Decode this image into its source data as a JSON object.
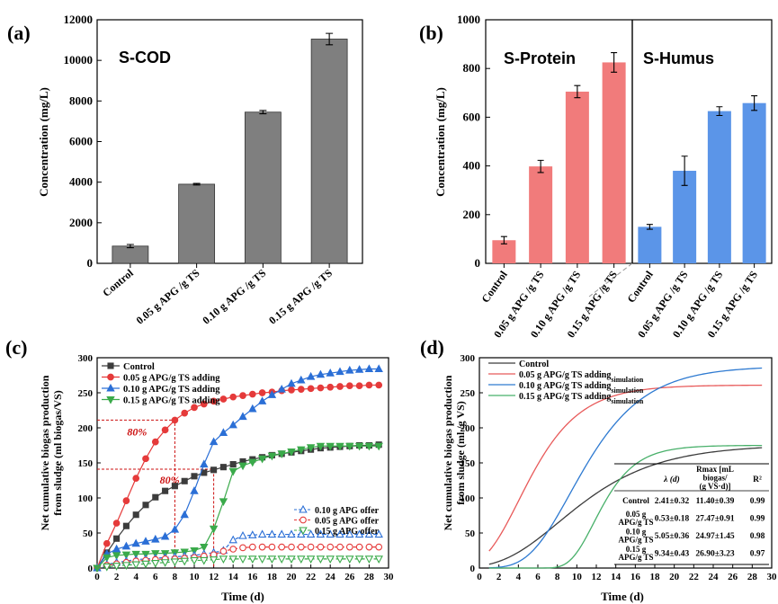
{
  "colors": {
    "grey": "#7f7f7f",
    "red": "#f17b7b",
    "blue": "#5b95e8",
    "black": "#3c3c3c",
    "c_red": "#e53a3a",
    "c_blue": "#2b6fd6",
    "c_green": "#3aaa4a",
    "d_red": "#e85a5a",
    "d_blue": "#2e7ad1",
    "d_green": "#48b06a",
    "annot": "#cc1111"
  },
  "chart_data": [
    {
      "type": "bar",
      "panel": "(a)",
      "label": "S-COD",
      "ylabel": "Concentration (mg/L)",
      "ylim": [
        0,
        12000
      ],
      "yticks": [
        "0",
        "2000",
        "4000",
        "6000",
        "8000",
        "10000",
        "12000"
      ],
      "categories": [
        "Control",
        "0.05 g APG /g TS",
        "0.10 g APG /g TS",
        "0.15 g APG /g TS"
      ],
      "values": [
        850,
        3900,
        7450,
        11050
      ],
      "errors": [
        80,
        40,
        80,
        280
      ]
    },
    {
      "type": "bar",
      "panel": "(b)",
      "ylabel": "Concentration (mg/L)",
      "ylim": [
        0,
        1000
      ],
      "yticks": [
        "0",
        "200",
        "400",
        "600",
        "800",
        "1000"
      ],
      "groups": [
        {
          "label": "S-Protein",
          "categories": [
            "Control",
            "0.05 g APG /g TS",
            "0.10 g APG /g TS",
            "0.15 g APG /g TS"
          ],
          "values": [
            95,
            398,
            705,
            825
          ],
          "errors": [
            15,
            25,
            25,
            40
          ]
        },
        {
          "label": "S-Humus",
          "categories": [
            "Control",
            "0.05 g APG /g TS",
            "0.10 g APG /g TS",
            "0.15 g APG /g TS"
          ],
          "values": [
            150,
            380,
            625,
            658
          ],
          "errors": [
            10,
            60,
            18,
            30
          ]
        }
      ]
    },
    {
      "type": "line",
      "panel": "(c)",
      "xlabel": "Time (d)",
      "ylabel": "Net cumulative biogas production from sludge (ml biogas/VS)",
      "ylabel_lines": [
        "Net cumulative biogas production",
        "from sludge (ml biogas/VS)"
      ],
      "xlim": [
        0,
        30
      ],
      "ylim": [
        0,
        300
      ],
      "xticks": [
        "0",
        "2",
        "4",
        "6",
        "8",
        "10",
        "12",
        "14",
        "16",
        "18",
        "20",
        "22",
        "24",
        "26",
        "28",
        "30"
      ],
      "yticks": [
        "0",
        "50",
        "100",
        "150",
        "200",
        "250",
        "300"
      ],
      "series": [
        {
          "name": "Control",
          "x": [
            0,
            1,
            2,
            3,
            4,
            5,
            6,
            7,
            8,
            9,
            10,
            11,
            12,
            13,
            14,
            15,
            16,
            17,
            18,
            19,
            20,
            21,
            22,
            23,
            24,
            25,
            26,
            27,
            28,
            29
          ],
          "y": [
            0,
            22,
            42,
            60,
            76,
            90,
            101,
            110,
            117,
            124,
            131,
            136,
            140,
            144,
            148,
            152,
            155,
            158,
            161,
            163,
            165,
            167,
            169,
            171,
            172,
            173,
            174,
            175,
            175,
            176
          ]
        },
        {
          "name": "0.05 g APG/g TS adding",
          "x": [
            0,
            1,
            2,
            3,
            4,
            5,
            6,
            7,
            8,
            9,
            10,
            11,
            12,
            13,
            14,
            15,
            16,
            17,
            18,
            19,
            20,
            21,
            22,
            23,
            24,
            25,
            26,
            27,
            28,
            29
          ],
          "y": [
            0,
            35,
            64,
            96,
            128,
            156,
            180,
            197,
            211,
            221,
            229,
            234,
            238,
            241,
            244,
            246,
            248,
            250,
            251,
            253,
            254,
            255,
            256,
            257,
            258,
            259,
            260,
            260,
            261,
            261
          ]
        },
        {
          "name": "0.10 g APG/g TS adding",
          "x": [
            0,
            1,
            2,
            3,
            4,
            5,
            6,
            7,
            8,
            9,
            10,
            11,
            12,
            13,
            14,
            15,
            16,
            17,
            18,
            19,
            20,
            21,
            22,
            23,
            24,
            25,
            26,
            27,
            28,
            29
          ],
          "y": [
            0,
            20,
            27,
            31,
            35,
            38,
            41,
            45,
            55,
            76,
            110,
            148,
            180,
            193,
            204,
            216,
            227,
            238,
            247,
            255,
            263,
            268,
            273,
            276,
            278,
            280,
            282,
            283,
            284,
            284
          ]
        },
        {
          "name": "0.15 g APG/g TS adding",
          "x": [
            0,
            1,
            2,
            3,
            4,
            5,
            6,
            7,
            8,
            9,
            10,
            11,
            12,
            13,
            14,
            15,
            16,
            17,
            18,
            19,
            20,
            21,
            22,
            23,
            24,
            25,
            26,
            27,
            28,
            29
          ],
          "y": [
            0,
            15,
            18,
            19,
            20,
            20,
            21,
            21,
            22,
            23,
            25,
            30,
            56,
            95,
            138,
            146,
            151,
            156,
            160,
            163,
            166,
            169,
            172,
            174,
            174,
            174,
            174,
            174,
            174,
            174
          ]
        },
        {
          "name": "0.10 g APG offer",
          "x": [
            0,
            1,
            2,
            3,
            4,
            5,
            6,
            7,
            8,
            9,
            10,
            11,
            12,
            13,
            14,
            15,
            16,
            17,
            18,
            19,
            20,
            21,
            22,
            23,
            24,
            25,
            26,
            27,
            28,
            29
          ],
          "y": [
            0,
            5,
            8,
            10,
            12,
            13,
            14,
            15,
            16,
            17,
            18,
            20,
            22,
            25,
            40,
            46,
            47,
            48,
            48,
            48,
            48,
            48,
            48,
            48,
            48,
            48,
            48,
            48,
            48,
            48
          ]
        },
        {
          "name": "0.05 g APG offer",
          "x": [
            0,
            1,
            2,
            3,
            4,
            5,
            6,
            7,
            8,
            9,
            10,
            11,
            12,
            13,
            14,
            15,
            16,
            17,
            18,
            19,
            20,
            21,
            22,
            23,
            24,
            25,
            26,
            27,
            28,
            29
          ],
          "y": [
            0,
            4,
            6,
            8,
            10,
            11,
            12,
            13,
            13,
            14,
            15,
            17,
            19,
            24,
            27,
            29,
            30,
            30,
            30,
            30,
            30,
            30,
            30,
            30,
            30,
            30,
            30,
            30,
            30,
            30
          ]
        },
        {
          "name": "0.15 g APG offer",
          "x": [
            0,
            1,
            2,
            3,
            4,
            5,
            6,
            7,
            8,
            9,
            10,
            11,
            12,
            13,
            14,
            15,
            16,
            17,
            18,
            19,
            20,
            21,
            22,
            23,
            24,
            25,
            26,
            27,
            28,
            29
          ],
          "y": [
            0,
            2,
            3,
            4,
            5,
            6,
            7,
            8,
            9,
            10,
            11,
            11,
            12,
            13,
            13,
            13,
            13,
            13,
            13,
            13,
            13,
            13,
            13,
            13,
            13,
            13,
            13,
            13,
            13,
            13
          ]
        }
      ],
      "annotations": [
        {
          "text": "80%",
          "x": 8,
          "y": 211
        },
        {
          "text": "80%",
          "x": 12,
          "y": 141
        }
      ]
    },
    {
      "type": "line",
      "panel": "(d)",
      "xlabel": "Time (d)",
      "ylabel": "Net cumulative biogas production from sludge (ml /g VS)",
      "ylabel_lines": [
        "Net cumulative biogas production",
        "from sludge (ml /g VS)"
      ],
      "xlim": [
        0,
        30
      ],
      "ylim": [
        0,
        300
      ],
      "xticks": [
        "0",
        "2",
        "4",
        "6",
        "8",
        "10",
        "12",
        "14",
        "16",
        "18",
        "20",
        "22",
        "24",
        "26",
        "28",
        "30"
      ],
      "yticks": [
        "0",
        "50",
        "100",
        "150",
        "200",
        "250",
        "300"
      ],
      "model": "modified Gompertz",
      "series": [
        {
          "name": "Control",
          "P": 176,
          "Rm": 11.4,
          "lambda": 2.41
        },
        {
          "name": "0.05 g APG/g TS adding",
          "sub": "simulation",
          "P": 261,
          "Rm": 27.47,
          "lambda": 0.53
        },
        {
          "name": "0.10 g APG/g TS adding",
          "sub": "simulation",
          "P": 288,
          "Rm": 24.97,
          "lambda": 5.05
        },
        {
          "name": "0.15 g APG/g TS adding",
          "sub": "simulation",
          "P": 175,
          "Rm": 26.9,
          "lambda": 9.34
        }
      ],
      "table": {
        "headers": [
          "λ (d)",
          "Rmax [mL biogas/(g VS·d)]",
          "R²"
        ],
        "rows": [
          {
            "label": "Control",
            "lambda": "2.41±0.32",
            "rmax": "11.40±0.39",
            "r2": "0.99"
          },
          {
            "label": "0.05 g APG/g TS",
            "lambda": "0.53±0.18",
            "rmax": "27.47±0.91",
            "r2": "0.99"
          },
          {
            "label": "0.10 g APG/g TS",
            "lambda": "5.05±0.36",
            "rmax": "24.97±1.45",
            "r2": "0.98"
          },
          {
            "label": "0.15 g APG/g TS",
            "lambda": "9.34±0.43",
            "rmax": "26.90±3.23",
            "r2": "0.97"
          }
        ]
      }
    }
  ]
}
